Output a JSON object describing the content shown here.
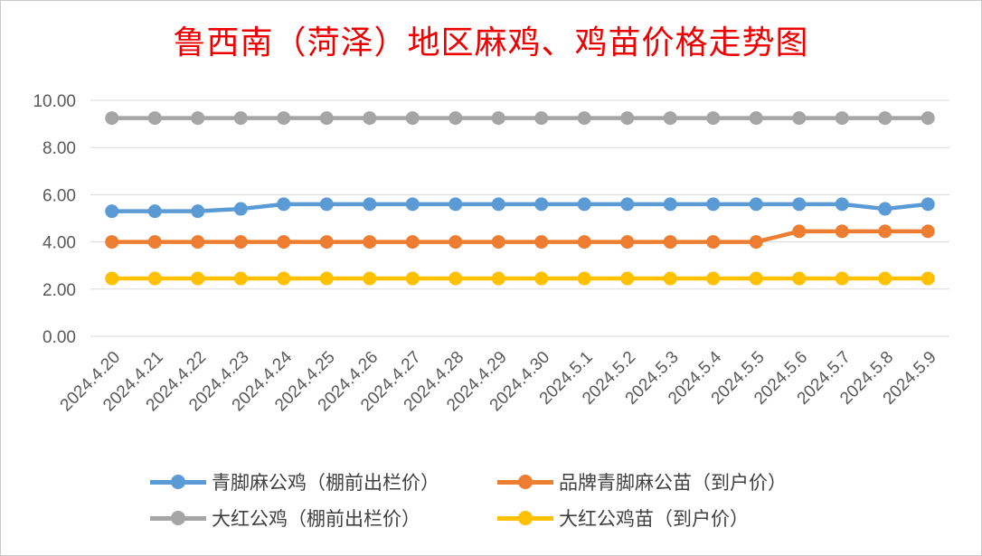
{
  "chart_data": {
    "type": "line",
    "title": "鲁西南（菏泽）地区麻鸡、鸡苗价格走势图",
    "categories": [
      "2024.4.20",
      "2024.4.21",
      "2024.4.22",
      "2024.4.23",
      "2024.4.24",
      "2024.4.25",
      "2024.4.26",
      "2024.4.27",
      "2024.4.28",
      "2024.4.29",
      "2024.4.30",
      "2024.5.1",
      "2024.5.2",
      "2024.5.3",
      "2024.5.4",
      "2024.5.5",
      "2024.5.6",
      "2024.5.7",
      "2024.5.8",
      "2024.5.9"
    ],
    "y_ticks": [
      "0.00",
      "2.00",
      "4.00",
      "6.00",
      "8.00",
      "10.00"
    ],
    "ylim": [
      0,
      10
    ],
    "grid": true,
    "legend_position": "bottom",
    "series": [
      {
        "name": "青脚麻公鸡（棚前出栏价）",
        "color": "#5b9bd5",
        "values": [
          5.3,
          5.3,
          5.3,
          5.4,
          5.6,
          5.6,
          5.6,
          5.6,
          5.6,
          5.6,
          5.6,
          5.6,
          5.6,
          5.6,
          5.6,
          5.6,
          5.6,
          5.6,
          5.4,
          5.6
        ]
      },
      {
        "name": "品牌青脚麻公苗（到户价）",
        "color": "#ed7d31",
        "values": [
          4.0,
          4.0,
          4.0,
          4.0,
          4.0,
          4.0,
          4.0,
          4.0,
          4.0,
          4.0,
          4.0,
          4.0,
          4.0,
          4.0,
          4.0,
          4.0,
          4.45,
          4.45,
          4.45,
          4.45
        ]
      },
      {
        "name": "大红公鸡（棚前出栏价）",
        "color": "#a5a5a5",
        "values": [
          9.25,
          9.25,
          9.25,
          9.25,
          9.25,
          9.25,
          9.25,
          9.25,
          9.25,
          9.25,
          9.25,
          9.25,
          9.25,
          9.25,
          9.25,
          9.25,
          9.25,
          9.25,
          9.25,
          9.25
        ]
      },
      {
        "name": "大红公鸡苗（到户价）",
        "color": "#ffc000",
        "values": [
          2.45,
          2.45,
          2.45,
          2.45,
          2.45,
          2.45,
          2.45,
          2.45,
          2.45,
          2.45,
          2.45,
          2.45,
          2.45,
          2.45,
          2.45,
          2.45,
          2.45,
          2.45,
          2.45,
          2.45
        ]
      }
    ]
  }
}
